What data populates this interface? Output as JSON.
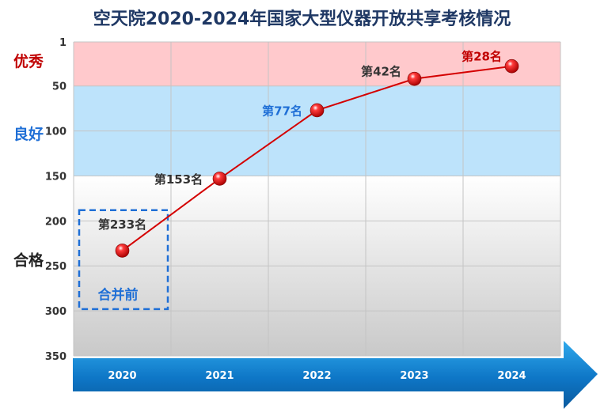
{
  "title": "空天院2020-2024年国家大型仪器开放共享考核情况",
  "colors": {
    "excellent_band": "#ffc9cc",
    "good_band": "#bde3fb",
    "line": "#d40000",
    "excellent_label": "#c00000",
    "good_label": "#1f6fd6",
    "pass_label": "#222222",
    "arrow": "#1a8fd8"
  },
  "chart_data": {
    "type": "line",
    "title": "空天院2020-2024年国家大型仪器开放共享考核情况",
    "categories": [
      "2020",
      "2021",
      "2022",
      "2023",
      "2024"
    ],
    "series": [
      {
        "values": [
          233,
          153,
          77,
          42,
          28
        ]
      }
    ],
    "data_labels": [
      "第233名",
      "第153名",
      "第77名",
      "第42名",
      "第28名"
    ],
    "data_label_colors": [
      "#333333",
      "#333333",
      "#1f6fd6",
      "#333333",
      "#c00000"
    ],
    "y_ticks": [
      "1",
      "50",
      "100",
      "150",
      "200",
      "250",
      "300",
      "350"
    ],
    "y_tick_values": [
      1,
      50,
      100,
      150,
      200,
      250,
      300,
      350
    ],
    "ylim": [
      1,
      350
    ],
    "y_inverted": true,
    "grid": true,
    "bands": [
      {
        "label": "优秀",
        "from": 1,
        "to": 50
      },
      {
        "label": "良好",
        "from": 50,
        "to": 150
      },
      {
        "label": "合格",
        "from": 150,
        "to": 350
      }
    ],
    "annotation": "合并前"
  }
}
